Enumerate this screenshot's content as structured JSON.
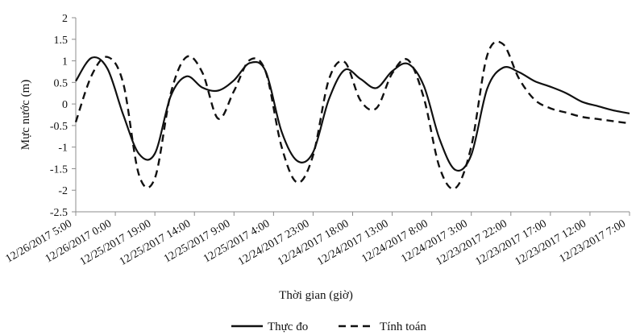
{
  "chart_data": {
    "type": "line",
    "title": "",
    "xlabel": "Thời gian (giờ)",
    "ylabel": "Mực nước (m)",
    "ylim": [
      -2.5,
      2
    ],
    "yticks": [
      "2",
      "1.5",
      "1",
      "0.5",
      "0",
      "-0.5",
      "-1",
      "-1.5",
      "-2",
      "-2.5"
    ],
    "x_tick_labels": [
      "12/26/2017 5:00",
      "12/26/2017 0:00",
      "12/25/2017 19:00",
      "12/25/2017 14:00",
      "12/25/2017 9:00",
      "12/25/2017 4:00",
      "12/24/2017 23:00",
      "12/24/2017 18:00",
      "12/24/2017 13:00",
      "12/24/2017 8:00",
      "12/24/2017 3:00",
      "12/23/2017 22:00",
      "12/23/2017 17:00",
      "12/23/2017 12:00",
      "12/23/2017 7:00"
    ],
    "x_hours_before_start": [
      0,
      2,
      4,
      6,
      8,
      10,
      12,
      14,
      16,
      18,
      20,
      22,
      24,
      26,
      28,
      30,
      32,
      34,
      36,
      38,
      40,
      42,
      44,
      46,
      48,
      50,
      52,
      54,
      56,
      58,
      60,
      62,
      64,
      66,
      68,
      70
    ],
    "series": [
      {
        "name": "Thực đo",
        "style": "solid",
        "values": [
          0.53,
          1.07,
          0.82,
          -0.25,
          -1.16,
          -1.15,
          0.18,
          0.64,
          0.38,
          0.31,
          0.55,
          0.95,
          0.76,
          -0.63,
          -1.32,
          -1.12,
          0.11,
          0.79,
          0.58,
          0.37,
          0.76,
          0.93,
          0.42,
          -0.82,
          -1.53,
          -1.18,
          0.35,
          0.84,
          0.74,
          0.53,
          0.4,
          0.25,
          0.05,
          -0.05,
          -0.15,
          -0.22
        ]
      },
      {
        "name": "Tính toán",
        "style": "dashed",
        "values": [
          -0.42,
          0.66,
          1.09,
          0.48,
          -1.65,
          -1.72,
          0.24,
          1.09,
          0.73,
          -0.34,
          0.3,
          1.02,
          0.75,
          -0.98,
          -1.82,
          -1.19,
          0.57,
          0.97,
          0.08,
          -0.1,
          0.71,
          1.02,
          0.14,
          -1.48,
          -1.95,
          -0.98,
          1.12,
          1.39,
          0.6,
          0.1,
          -0.1,
          -0.2,
          -0.3,
          -0.35,
          -0.4,
          -0.45
        ]
      }
    ],
    "legend": {
      "position": "bottom",
      "items": [
        "Thực đo",
        "Tính toán"
      ]
    },
    "grid": false
  }
}
